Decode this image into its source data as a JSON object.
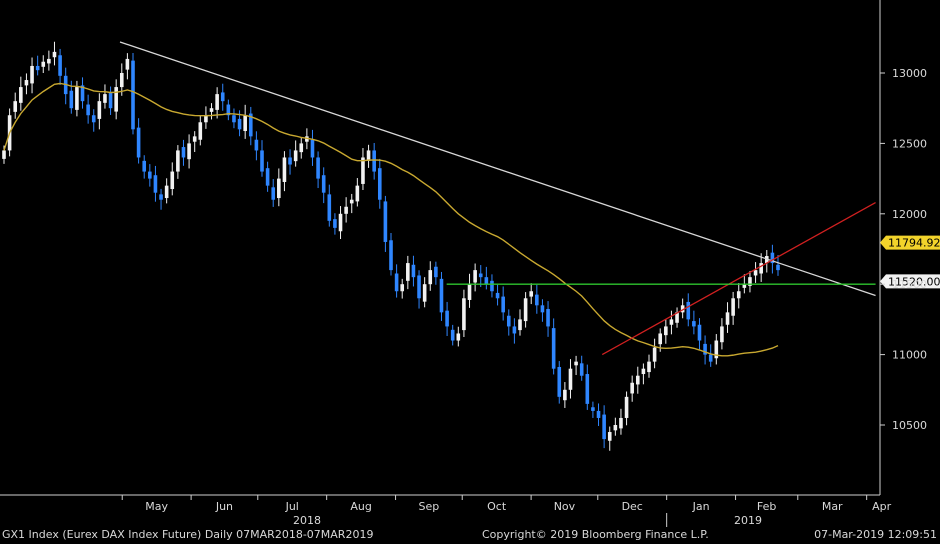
{
  "footer": {
    "left": "GX1 Index (Eurex DAX Index Future)  Daily 07MAR2018-07MAR2019",
    "center": "Copyright© 2019 Bloomberg Finance L.P.",
    "right": "07-Mar-2019 12:09:51"
  },
  "chart_data": {
    "type": "candlestick",
    "instrument": "GX1 Index (Eurex DAX Index Future)",
    "interval": "Daily",
    "range": "07MAR2018-07MAR2019",
    "ylim": [
      10200,
      13700
    ],
    "y_ticks": [
      10500,
      11000,
      11500,
      12000,
      12500,
      13000
    ],
    "x_months": [
      "May",
      "Jun",
      "Jul",
      "Aug",
      "Sep",
      "Oct",
      "Nov",
      "Dec",
      "Jan",
      "Feb",
      "Mar",
      "Apr"
    ],
    "x_years": [
      "2018",
      "2019"
    ],
    "price_tags": [
      {
        "label": "11794.92",
        "value": 11794.92,
        "color": "#f2d32b"
      },
      {
        "label": "11520.00",
        "value": 11520.0,
        "color": "#f2f2f2"
      }
    ],
    "closes": [
      12450,
      12700,
      12800,
      12900,
      12950,
      13050,
      13020,
      13080,
      13100,
      13150,
      12980,
      12850,
      12750,
      12900,
      12800,
      12700,
      12650,
      12800,
      12850,
      12750,
      12900,
      13000,
      13100,
      12600,
      12400,
      12300,
      12250,
      12150,
      12100,
      12200,
      12300,
      12450,
      12400,
      12500,
      12550,
      12650,
      12700,
      12750,
      12850,
      12800,
      12700,
      12650,
      12600,
      12700,
      12550,
      12450,
      12300,
      12200,
      12100,
      12250,
      12400,
      12350,
      12450,
      12500,
      12550,
      12400,
      12250,
      12150,
      11950,
      11900,
      12000,
      12050,
      12100,
      12200,
      12400,
      12450,
      12300,
      12100,
      11800,
      11600,
      11450,
      11500,
      11650,
      11550,
      11400,
      11500,
      11600,
      11550,
      11300,
      11200,
      11100,
      11150,
      11400,
      11500,
      11600,
      11550,
      11500,
      11450,
      11400,
      11300,
      11200,
      11150,
      11250,
      11400,
      11450,
      11350,
      11300,
      11200,
      10900,
      10700,
      10750,
      10900,
      10950,
      10850,
      10650,
      10600,
      10550,
      10400,
      10450,
      10500,
      10550,
      10700,
      10800,
      10850,
      10900,
      10950,
      11050,
      11150,
      11200,
      11250,
      11300,
      11350,
      11250,
      11200,
      11100,
      11000,
      10950,
      11100,
      11200,
      11300,
      11400,
      11450,
      11500,
      11550,
      11600,
      11650,
      11700,
      11650,
      11600
    ],
    "moving_average": {
      "name": "",
      "color": "#c8a830"
    },
    "trendlines": [
      {
        "color": "#d8d8d8",
        "from": {
          "x": "2018-04-30",
          "y": 13220
        },
        "to": {
          "x": "2019-04-05",
          "y": 11420
        }
      },
      {
        "color": "#d02020",
        "from": {
          "x": "2018-12-03",
          "y": 11000
        },
        "to": {
          "x": "2019-04-05",
          "y": 12080
        }
      },
      {
        "color": "#2ec52e",
        "from": {
          "x": "2018-09-24",
          "y": 11500
        },
        "to": {
          "x": "2019-04-05",
          "y": 11500
        }
      }
    ]
  }
}
